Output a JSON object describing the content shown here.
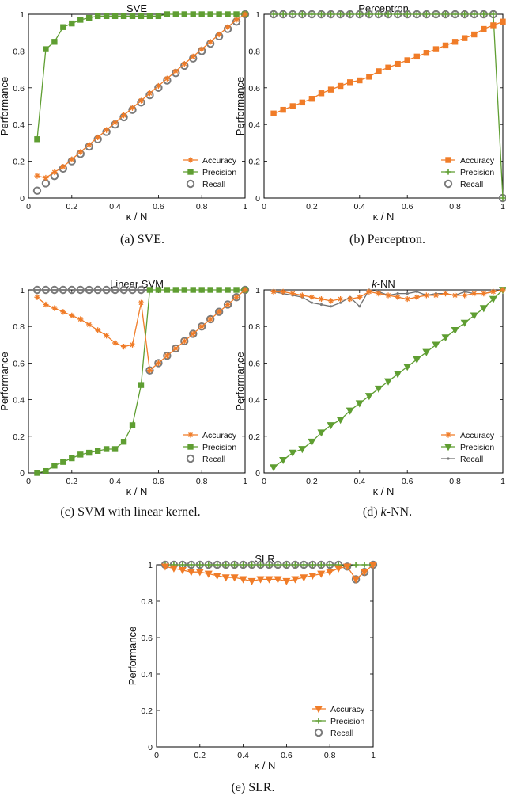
{
  "figure": {
    "captions": [
      "(a) SVE.",
      "(b) Perceptron.",
      "(c) SVM with linear kernel.",
      "(d) k-NN.",
      "(e) SLR."
    ]
  },
  "colors": {
    "accuracy": "#f07c28",
    "precision": "#5f9e32",
    "recall": "#7a7a7a",
    "recall_line": "#707070"
  },
  "chart_data": [
    {
      "type": "line",
      "title": "SVE",
      "caption": "(a) SVE.",
      "xlabel": "κ / N",
      "ylabel": "Performance",
      "xlim": [
        0,
        1
      ],
      "ylim": [
        0,
        1
      ],
      "xticks": [
        0,
        0.2,
        0.4,
        0.6,
        0.8,
        1
      ],
      "yticks": [
        0,
        0.2,
        0.4,
        0.6,
        0.8,
        1
      ],
      "legend_position": "bottom-right",
      "x": [
        0.04,
        0.08,
        0.12,
        0.16,
        0.2,
        0.24,
        0.28,
        0.32,
        0.36,
        0.4,
        0.44,
        0.48,
        0.52,
        0.56,
        0.6,
        0.64,
        0.68,
        0.72,
        0.76,
        0.8,
        0.84,
        0.88,
        0.92,
        0.96,
        1.0
      ],
      "series": [
        {
          "name": "Accuracy",
          "marker": "star",
          "values": [
            0.12,
            0.11,
            0.14,
            0.17,
            0.21,
            0.25,
            0.29,
            0.33,
            0.37,
            0.41,
            0.45,
            0.49,
            0.53,
            0.57,
            0.61,
            0.65,
            0.69,
            0.73,
            0.77,
            0.81,
            0.85,
            0.89,
            0.93,
            0.97,
            1.0
          ]
        },
        {
          "name": "Precision",
          "marker": "square",
          "values": [
            0.32,
            0.81,
            0.85,
            0.93,
            0.95,
            0.97,
            0.98,
            0.99,
            0.99,
            0.99,
            0.99,
            0.99,
            0.99,
            0.99,
            0.99,
            1.0,
            1.0,
            1.0,
            1.0,
            1.0,
            1.0,
            1.0,
            1.0,
            1.0,
            1.0
          ]
        },
        {
          "name": "Recall",
          "marker": "circle",
          "values": [
            0.04,
            0.08,
            0.12,
            0.16,
            0.2,
            0.24,
            0.28,
            0.32,
            0.36,
            0.4,
            0.44,
            0.48,
            0.52,
            0.56,
            0.6,
            0.64,
            0.68,
            0.72,
            0.76,
            0.8,
            0.84,
            0.88,
            0.92,
            0.96,
            1.0
          ]
        }
      ]
    },
    {
      "type": "line",
      "title": "Perceptron",
      "caption": "(b) Perceptron.",
      "xlabel": "κ / N",
      "ylabel": "Performance",
      "xlim": [
        0,
        1
      ],
      "ylim": [
        0,
        1
      ],
      "xticks": [
        0,
        0.2,
        0.4,
        0.6,
        0.8,
        1
      ],
      "yticks": [
        0,
        0.2,
        0.4,
        0.6,
        0.8,
        1
      ],
      "legend_position": "bottom-right",
      "x": [
        0.04,
        0.08,
        0.12,
        0.16,
        0.2,
        0.24,
        0.28,
        0.32,
        0.36,
        0.4,
        0.44,
        0.48,
        0.52,
        0.56,
        0.6,
        0.64,
        0.68,
        0.72,
        0.76,
        0.8,
        0.84,
        0.88,
        0.92,
        0.96,
        1.0
      ],
      "series": [
        {
          "name": "Accuracy",
          "marker": "square",
          "values": [
            0.46,
            0.48,
            0.5,
            0.52,
            0.54,
            0.57,
            0.59,
            0.61,
            0.63,
            0.64,
            0.66,
            0.69,
            0.71,
            0.73,
            0.75,
            0.77,
            0.79,
            0.81,
            0.83,
            0.85,
            0.87,
            0.89,
            0.92,
            0.94,
            0.96
          ]
        },
        {
          "name": "Precision",
          "marker": "plus",
          "values": [
            1,
            1,
            1,
            1,
            1,
            1,
            1,
            1,
            1,
            1,
            1,
            1,
            1,
            1,
            1,
            1,
            1,
            1,
            1,
            1,
            1,
            1,
            1,
            1,
            0
          ]
        },
        {
          "name": "Recall",
          "marker": "circle",
          "values": [
            1,
            1,
            1,
            1,
            1,
            1,
            1,
            1,
            1,
            1,
            1,
            1,
            1,
            1,
            1,
            1,
            1,
            1,
            1,
            1,
            1,
            1,
            1,
            1,
            0
          ]
        }
      ]
    },
    {
      "type": "line",
      "title": "Linear SVM",
      "caption": "(c) SVM with linear kernel.",
      "xlabel": "κ / N",
      "ylabel": "Performance",
      "xlim": [
        0,
        1
      ],
      "ylim": [
        0,
        1
      ],
      "xticks": [
        0,
        0.2,
        0.4,
        0.6,
        0.8,
        1
      ],
      "yticks": [
        0,
        0.2,
        0.4,
        0.6,
        0.8,
        1
      ],
      "legend_position": "bottom-right",
      "x": [
        0.04,
        0.08,
        0.12,
        0.16,
        0.2,
        0.24,
        0.28,
        0.32,
        0.36,
        0.4,
        0.44,
        0.48,
        0.52,
        0.56,
        0.6,
        0.64,
        0.68,
        0.72,
        0.76,
        0.8,
        0.84,
        0.88,
        0.92,
        0.96,
        1.0
      ],
      "series": [
        {
          "name": "Accuracy",
          "marker": "star",
          "values": [
            0.96,
            0.92,
            0.9,
            0.88,
            0.86,
            0.84,
            0.81,
            0.78,
            0.75,
            0.71,
            0.69,
            0.7,
            0.93,
            0.56,
            0.6,
            0.64,
            0.68,
            0.72,
            0.76,
            0.8,
            0.84,
            0.88,
            0.92,
            0.96,
            1.0
          ]
        },
        {
          "name": "Precision",
          "marker": "square",
          "values": [
            0.0,
            0.01,
            0.04,
            0.06,
            0.08,
            0.1,
            0.11,
            0.12,
            0.13,
            0.13,
            0.17,
            0.26,
            0.48,
            1.0,
            1.0,
            1.0,
            1.0,
            1.0,
            1.0,
            1.0,
            1.0,
            1.0,
            1.0,
            1.0,
            1.0
          ]
        },
        {
          "name": "Recall",
          "marker": "circle",
          "values": [
            1,
            1,
            1,
            1,
            1,
            1,
            1,
            1,
            1,
            1,
            1,
            1,
            1,
            0.56,
            0.6,
            0.64,
            0.68,
            0.72,
            0.76,
            0.8,
            0.84,
            0.88,
            0.92,
            0.96,
            1.0
          ]
        }
      ]
    },
    {
      "type": "line",
      "title": "k-NN",
      "caption": "(d) k-NN.",
      "xlabel": "κ / N",
      "ylabel": "Performance",
      "xlim": [
        0,
        1
      ],
      "ylim": [
        0,
        1
      ],
      "xticks": [
        0,
        0.2,
        0.4,
        0.6,
        0.8,
        1
      ],
      "yticks": [
        0,
        0.2,
        0.4,
        0.6,
        0.8,
        1
      ],
      "legend_position": "bottom-right",
      "x": [
        0.04,
        0.08,
        0.12,
        0.16,
        0.2,
        0.24,
        0.28,
        0.32,
        0.36,
        0.4,
        0.44,
        0.48,
        0.52,
        0.56,
        0.6,
        0.64,
        0.68,
        0.72,
        0.76,
        0.8,
        0.84,
        0.88,
        0.92,
        0.96,
        1.0
      ],
      "series": [
        {
          "name": "Accuracy",
          "marker": "star",
          "values": [
            0.99,
            0.99,
            0.98,
            0.97,
            0.96,
            0.95,
            0.94,
            0.95,
            0.95,
            0.96,
            0.99,
            0.98,
            0.97,
            0.96,
            0.95,
            0.96,
            0.97,
            0.97,
            0.98,
            0.97,
            0.97,
            0.98,
            0.98,
            0.99,
            1.0
          ]
        },
        {
          "name": "Precision",
          "marker": "triangle-down",
          "values": [
            0.03,
            0.07,
            0.11,
            0.13,
            0.17,
            0.22,
            0.26,
            0.29,
            0.34,
            0.38,
            0.42,
            0.46,
            0.5,
            0.54,
            0.58,
            0.62,
            0.66,
            0.7,
            0.74,
            0.78,
            0.82,
            0.86,
            0.9,
            0.95,
            1.0
          ]
        },
        {
          "name": "Recall",
          "marker": "dot",
          "values": [
            0.99,
            0.98,
            0.97,
            0.96,
            0.93,
            0.92,
            0.91,
            0.93,
            0.96,
            0.91,
            1.0,
            0.99,
            0.97,
            0.98,
            0.98,
            0.99,
            0.97,
            0.98,
            0.98,
            0.97,
            0.99,
            0.98,
            0.98,
            0.99,
            1.0
          ]
        }
      ]
    },
    {
      "type": "line",
      "title": "SLR",
      "caption": "(e) SLR.",
      "xlabel": "κ / N",
      "ylabel": "Performance",
      "xlim": [
        0,
        1
      ],
      "ylim": [
        0,
        1
      ],
      "xticks": [
        0,
        0.2,
        0.4,
        0.6,
        0.8,
        1
      ],
      "yticks": [
        0,
        0.2,
        0.4,
        0.6,
        0.8,
        1
      ],
      "legend_position": "bottom-right",
      "x": [
        0.04,
        0.08,
        0.12,
        0.16,
        0.2,
        0.24,
        0.28,
        0.32,
        0.36,
        0.4,
        0.44,
        0.48,
        0.52,
        0.56,
        0.6,
        0.64,
        0.68,
        0.72,
        0.76,
        0.8,
        0.84,
        0.88,
        0.92,
        0.96,
        1.0
      ],
      "series": [
        {
          "name": "Accuracy",
          "marker": "triangle-down",
          "values": [
            0.99,
            0.98,
            0.97,
            0.96,
            0.96,
            0.95,
            0.94,
            0.93,
            0.93,
            0.92,
            0.91,
            0.92,
            0.92,
            0.92,
            0.91,
            0.92,
            0.93,
            0.94,
            0.95,
            0.96,
            0.98,
            0.99,
            0.92,
            0.96,
            1.0
          ]
        },
        {
          "name": "Precision",
          "marker": "plus",
          "values": [
            1,
            1,
            1,
            1,
            1,
            1,
            1,
            1,
            1,
            1,
            1,
            1,
            1,
            1,
            1,
            1,
            1,
            1,
            1,
            1,
            1,
            0.99,
            1,
            1,
            1
          ]
        },
        {
          "name": "Recall",
          "marker": "circle",
          "values": [
            1,
            1,
            1,
            1,
            1,
            1,
            1,
            1,
            1,
            1,
            1,
            1,
            1,
            1,
            1,
            1,
            1,
            1,
            1,
            1,
            1,
            0.99,
            0.92,
            0.96,
            1.0
          ]
        }
      ]
    }
  ]
}
